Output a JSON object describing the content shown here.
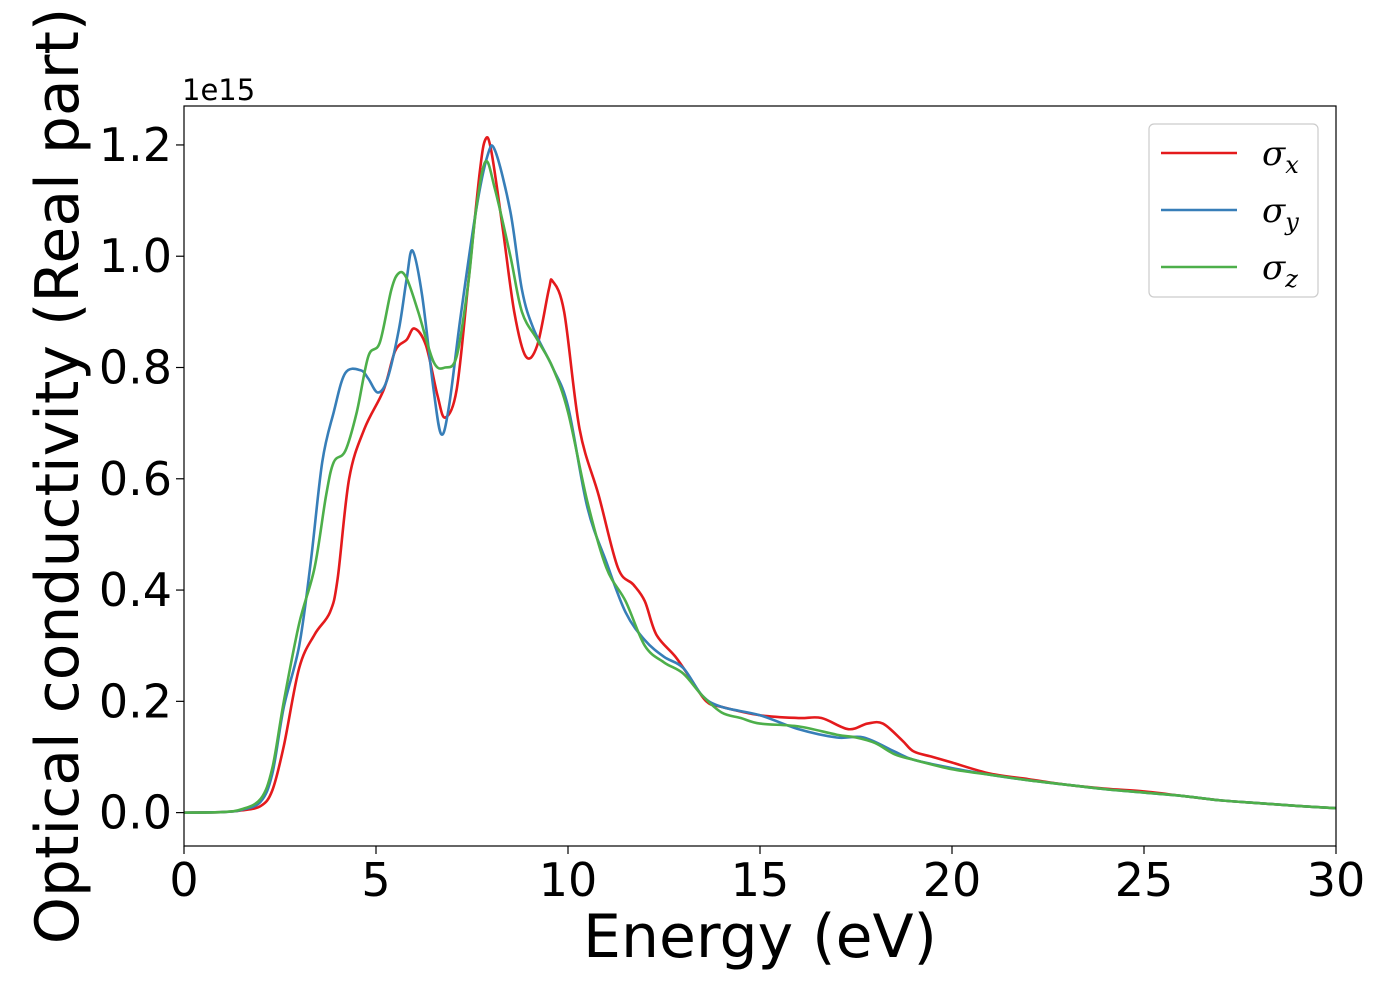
{
  "chart_data": {
    "type": "line",
    "title": "",
    "xlabel": "Energy (eV)",
    "ylabel": "Optical conductivity (Real part)",
    "y_offset_label": "1e15",
    "xlim": [
      0,
      30
    ],
    "ylim": [
      -0.06,
      1.27
    ],
    "x_ticks": [
      0,
      5,
      10,
      15,
      20,
      25,
      30
    ],
    "x_tick_labels": [
      "0",
      "5",
      "10",
      "15",
      "20",
      "25",
      "30"
    ],
    "y_ticks": [
      0.0,
      0.2,
      0.4,
      0.6,
      0.8,
      1.0,
      1.2
    ],
    "y_tick_labels": [
      "0.0",
      "0.2",
      "0.4",
      "0.6",
      "0.8",
      "1.0",
      "1.2"
    ],
    "grid": false,
    "legend_position": "top-right",
    "series": [
      {
        "name": "σx",
        "symbol": "σ",
        "subscript": "x",
        "color": "#e41a1c",
        "points": [
          [
            0,
            0
          ],
          [
            1,
            0.001
          ],
          [
            1.5,
            0.004
          ],
          [
            2,
            0.012
          ],
          [
            2.3,
            0.04
          ],
          [
            2.6,
            0.12
          ],
          [
            3,
            0.26
          ],
          [
            3.4,
            0.32
          ],
          [
            3.8,
            0.36
          ],
          [
            4,
            0.42
          ],
          [
            4.3,
            0.6
          ],
          [
            4.7,
            0.69
          ],
          [
            5.2,
            0.76
          ],
          [
            5.5,
            0.83
          ],
          [
            5.8,
            0.85
          ],
          [
            6,
            0.87
          ],
          [
            6.3,
            0.84
          ],
          [
            6.6,
            0.75
          ],
          [
            6.8,
            0.71
          ],
          [
            7.1,
            0.76
          ],
          [
            7.4,
            0.95
          ],
          [
            7.7,
            1.15
          ],
          [
            7.85,
            1.21
          ],
          [
            8,
            1.19
          ],
          [
            8.3,
            1.05
          ],
          [
            8.6,
            0.9
          ],
          [
            8.9,
            0.82
          ],
          [
            9.2,
            0.84
          ],
          [
            9.5,
            0.94
          ],
          [
            9.6,
            0.955
          ],
          [
            9.9,
            0.9
          ],
          [
            10.3,
            0.69
          ],
          [
            10.8,
            0.57
          ],
          [
            11.3,
            0.44
          ],
          [
            11.7,
            0.41
          ],
          [
            12,
            0.38
          ],
          [
            12.3,
            0.32
          ],
          [
            12.8,
            0.28
          ],
          [
            13.2,
            0.24
          ],
          [
            13.6,
            0.2
          ],
          [
            14,
            0.19
          ],
          [
            15,
            0.175
          ],
          [
            16,
            0.17
          ],
          [
            16.6,
            0.17
          ],
          [
            17.3,
            0.15
          ],
          [
            17.8,
            0.16
          ],
          [
            18.2,
            0.16
          ],
          [
            18.7,
            0.13
          ],
          [
            19,
            0.11
          ],
          [
            19.5,
            0.1
          ],
          [
            20,
            0.09
          ],
          [
            21,
            0.07
          ],
          [
            22,
            0.06
          ],
          [
            23,
            0.05
          ],
          [
            24,
            0.043
          ],
          [
            25,
            0.038
          ],
          [
            26,
            0.03
          ],
          [
            27,
            0.022
          ],
          [
            28,
            0.017
          ],
          [
            29,
            0.012
          ],
          [
            30,
            0.008
          ]
        ]
      },
      {
        "name": "σy",
        "symbol": "σ",
        "subscript": "y",
        "color": "#377eb8",
        "points": [
          [
            0,
            0
          ],
          [
            1,
            0.001
          ],
          [
            1.5,
            0.005
          ],
          [
            2,
            0.02
          ],
          [
            2.3,
            0.07
          ],
          [
            2.6,
            0.19
          ],
          [
            3,
            0.3
          ],
          [
            3.3,
            0.45
          ],
          [
            3.6,
            0.63
          ],
          [
            3.9,
            0.72
          ],
          [
            4.2,
            0.79
          ],
          [
            4.6,
            0.795
          ],
          [
            4.8,
            0.78
          ],
          [
            5.05,
            0.755
          ],
          [
            5.3,
            0.78
          ],
          [
            5.6,
            0.87
          ],
          [
            5.8,
            0.96
          ],
          [
            5.95,
            1.01
          ],
          [
            6.2,
            0.93
          ],
          [
            6.5,
            0.76
          ],
          [
            6.7,
            0.68
          ],
          [
            6.9,
            0.73
          ],
          [
            7.2,
            0.89
          ],
          [
            7.6,
            1.08
          ],
          [
            7.9,
            1.18
          ],
          [
            8.1,
            1.19
          ],
          [
            8.5,
            1.08
          ],
          [
            8.8,
            0.94
          ],
          [
            9.1,
            0.87
          ],
          [
            9.6,
            0.8
          ],
          [
            10,
            0.73
          ],
          [
            10.5,
            0.55
          ],
          [
            11,
            0.45
          ],
          [
            11.5,
            0.36
          ],
          [
            12,
            0.31
          ],
          [
            12.5,
            0.28
          ],
          [
            13,
            0.26
          ],
          [
            13.5,
            0.21
          ],
          [
            14,
            0.19
          ],
          [
            15,
            0.175
          ],
          [
            16,
            0.15
          ],
          [
            17,
            0.135
          ],
          [
            17.7,
            0.135
          ],
          [
            18.5,
            0.11
          ],
          [
            19,
            0.095
          ],
          [
            20,
            0.08
          ],
          [
            21,
            0.068
          ],
          [
            22,
            0.058
          ],
          [
            23,
            0.05
          ],
          [
            24,
            0.042
          ],
          [
            25,
            0.036
          ],
          [
            26,
            0.03
          ],
          [
            27,
            0.022
          ],
          [
            28,
            0.017
          ],
          [
            29,
            0.012
          ],
          [
            30,
            0.008
          ]
        ]
      },
      {
        "name": "σz",
        "symbol": "σ",
        "subscript": "z",
        "color": "#4daf4a",
        "points": [
          [
            0,
            0
          ],
          [
            1,
            0.001
          ],
          [
            1.5,
            0.006
          ],
          [
            2,
            0.025
          ],
          [
            2.3,
            0.08
          ],
          [
            2.6,
            0.2
          ],
          [
            3,
            0.34
          ],
          [
            3.4,
            0.44
          ],
          [
            3.7,
            0.57
          ],
          [
            3.9,
            0.63
          ],
          [
            4.2,
            0.65
          ],
          [
            4.5,
            0.72
          ],
          [
            4.8,
            0.82
          ],
          [
            5.1,
            0.845
          ],
          [
            5.4,
            0.94
          ],
          [
            5.6,
            0.97
          ],
          [
            5.8,
            0.96
          ],
          [
            6.1,
            0.9
          ],
          [
            6.5,
            0.81
          ],
          [
            6.8,
            0.8
          ],
          [
            7.1,
            0.82
          ],
          [
            7.4,
            0.95
          ],
          [
            7.6,
            1.08
          ],
          [
            7.85,
            1.17
          ],
          [
            8.1,
            1.12
          ],
          [
            8.5,
            1.0
          ],
          [
            8.8,
            0.9
          ],
          [
            9.2,
            0.85
          ],
          [
            9.6,
            0.8
          ],
          [
            10,
            0.72
          ],
          [
            10.5,
            0.56
          ],
          [
            11,
            0.44
          ],
          [
            11.5,
            0.38
          ],
          [
            12,
            0.3
          ],
          [
            12.5,
            0.27
          ],
          [
            13,
            0.25
          ],
          [
            13.5,
            0.21
          ],
          [
            14,
            0.18
          ],
          [
            14.5,
            0.17
          ],
          [
            15,
            0.16
          ],
          [
            16,
            0.155
          ],
          [
            17,
            0.14
          ],
          [
            17.5,
            0.135
          ],
          [
            18,
            0.125
          ],
          [
            18.5,
            0.105
          ],
          [
            19,
            0.095
          ],
          [
            20,
            0.078
          ],
          [
            21,
            0.068
          ],
          [
            22,
            0.058
          ],
          [
            23,
            0.05
          ],
          [
            24,
            0.042
          ],
          [
            25,
            0.036
          ],
          [
            26,
            0.03
          ],
          [
            27,
            0.022
          ],
          [
            28,
            0.017
          ],
          [
            29,
            0.012
          ],
          [
            30,
            0.008
          ]
        ]
      }
    ]
  }
}
